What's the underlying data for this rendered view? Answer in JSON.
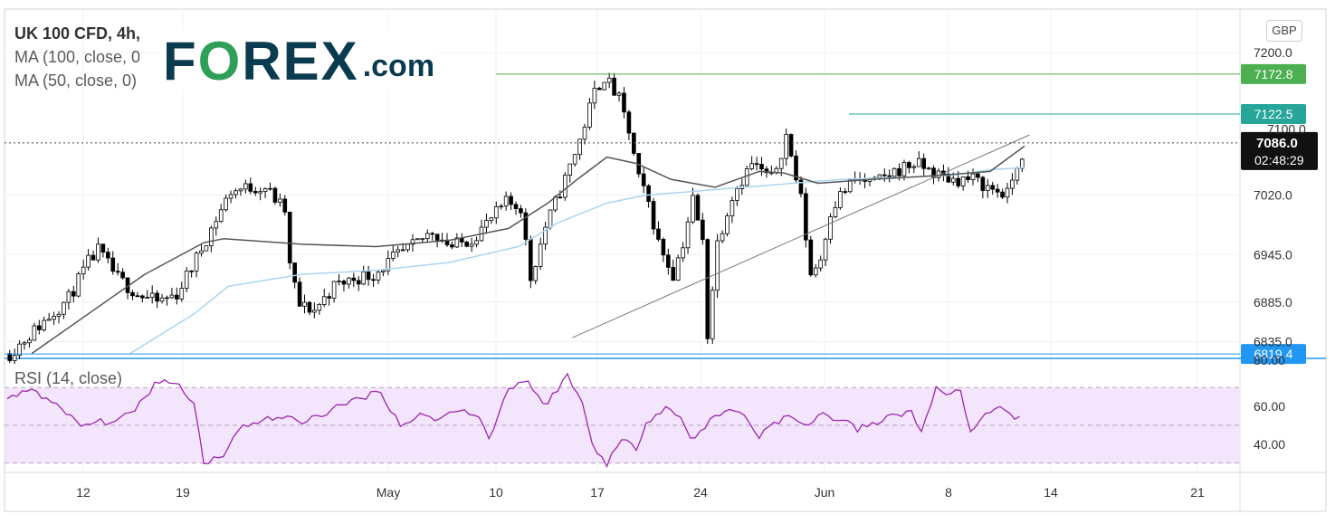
{
  "legend": {
    "symbol": "UK 100 CFD, 4h,",
    "ma100": "MA (100, close, 0",
    "ma50": "MA (50, close, 0)"
  },
  "logo": {
    "brand_pre": "F",
    "brand_o": "O",
    "brand_post": "REX",
    "domain": ".com"
  },
  "currency": "GBP",
  "rsi_label": "RSI (14, close)",
  "colors": {
    "resistance1": "#4caf50",
    "resistance2": "#26a69a",
    "support": "#2196f3",
    "candle": "#000000",
    "ma100": "#555555",
    "ma50": "#a8d6ef",
    "rsi": "#9c27b0",
    "rsi_band": "#f3e5fb"
  },
  "chart_data": {
    "type": "candlestick",
    "title": "UK 100 CFD, 4h",
    "x_tick_labels": [
      "12",
      "19",
      "May",
      "10",
      "17",
      "24",
      "Jun",
      "8",
      "14",
      "21"
    ],
    "price_ticks": [
      7200.0,
      7020.0,
      6945.0,
      6885.0,
      6835.0
    ],
    "price_range": [
      6815,
      7255
    ],
    "horizontal_levels": [
      {
        "value": 7172.8,
        "label": "7172.8",
        "role": "resistance"
      },
      {
        "value": 7122.5,
        "label": "7122.5",
        "role": "resistance"
      },
      {
        "value": 6819.4,
        "label": "6819.4",
        "role": "support"
      }
    ],
    "last_price": {
      "value": 7086.0,
      "label": "7086.0",
      "countdown": "02:48:29"
    },
    "hidden_tick": "7100.0",
    "trendline": {
      "from": {
        "bar": 115,
        "price": 6840
      },
      "to": {
        "bar": 208,
        "price": 7096
      }
    },
    "bar_count": 206,
    "anchors": [
      [
        0,
        6820
      ],
      [
        6,
        6855
      ],
      [
        12,
        6890
      ],
      [
        16,
        6935
      ],
      [
        18,
        6950
      ],
      [
        22,
        6915
      ],
      [
        26,
        6895
      ],
      [
        30,
        6885
      ],
      [
        34,
        6895
      ],
      [
        38,
        6940
      ],
      [
        42,
        6990
      ],
      [
        45,
        7025
      ],
      [
        49,
        7030
      ],
      [
        52,
        7030
      ],
      [
        56,
        7000
      ],
      [
        57,
        6930
      ],
      [
        59,
        6880
      ],
      [
        62,
        6875
      ],
      [
        66,
        6905
      ],
      [
        70,
        6915
      ],
      [
        74,
        6920
      ],
      [
        78,
        6940
      ],
      [
        82,
        6955
      ],
      [
        86,
        6975
      ],
      [
        90,
        6955
      ],
      [
        94,
        6965
      ],
      [
        98,
        6990
      ],
      [
        101,
        7010
      ],
      [
        104,
        7005
      ],
      [
        106,
        6915
      ],
      [
        109,
        6980
      ],
      [
        113,
        7040
      ],
      [
        116,
        7090
      ],
      [
        119,
        7150
      ],
      [
        121,
        7170
      ],
      [
        124,
        7140
      ],
      [
        126,
        7100
      ],
      [
        128,
        7040
      ],
      [
        130,
        7010
      ],
      [
        132,
        6960
      ],
      [
        135,
        6920
      ],
      [
        137,
        6960
      ],
      [
        139,
        7015
      ],
      [
        141,
        6960
      ],
      [
        142,
        6845
      ],
      [
        144,
        6960
      ],
      [
        147,
        7020
      ],
      [
        151,
        7060
      ],
      [
        153,
        7050
      ],
      [
        155,
        7040
      ],
      [
        157,
        7075
      ],
      [
        158,
        7095
      ],
      [
        161,
        7015
      ],
      [
        163,
        6920
      ],
      [
        165,
        6940
      ],
      [
        167,
        7000
      ],
      [
        169,
        7020
      ],
      [
        172,
        7040
      ],
      [
        176,
        7035
      ],
      [
        180,
        7050
      ],
      [
        184,
        7060
      ],
      [
        186,
        7055
      ],
      [
        189,
        7045
      ],
      [
        192,
        7040
      ],
      [
        196,
        7040
      ],
      [
        199,
        7030
      ],
      [
        203,
        7020
      ],
      [
        205,
        7060
      ]
    ],
    "ma100_line": [
      [
        5,
        6820
      ],
      [
        28,
        6920
      ],
      [
        40,
        6960
      ],
      [
        44,
        6965
      ],
      [
        60,
        6958
      ],
      [
        75,
        6955
      ],
      [
        90,
        6963
      ],
      [
        102,
        6978
      ],
      [
        110,
        7010
      ],
      [
        116,
        7040
      ],
      [
        122,
        7068
      ],
      [
        128,
        7060
      ],
      [
        135,
        7040
      ],
      [
        144,
        7030
      ],
      [
        153,
        7050
      ],
      [
        158,
        7048
      ],
      [
        165,
        7035
      ],
      [
        176,
        7040
      ],
      [
        190,
        7045
      ],
      [
        200,
        7050
      ],
      [
        207,
        7082
      ]
    ],
    "ma50_line": [
      [
        25,
        6820
      ],
      [
        38,
        6870
      ],
      [
        45,
        6905
      ],
      [
        60,
        6920
      ],
      [
        75,
        6925
      ],
      [
        90,
        6935
      ],
      [
        104,
        6955
      ],
      [
        112,
        6985
      ],
      [
        122,
        7010
      ],
      [
        130,
        7020
      ],
      [
        140,
        7025
      ],
      [
        150,
        7030
      ],
      [
        160,
        7035
      ],
      [
        170,
        7040
      ],
      [
        180,
        7042
      ],
      [
        192,
        7045
      ],
      [
        200,
        7052
      ],
      [
        207,
        7055
      ]
    ],
    "rsi": {
      "label": "RSI (14, close)",
      "ticks": [
        60.0,
        40.0
      ],
      "top_label": "80.00",
      "range": [
        25,
        85
      ],
      "bands": [
        70,
        30
      ],
      "middle": 50,
      "anchors": [
        [
          0,
          63
        ],
        [
          5,
          70
        ],
        [
          10,
          60
        ],
        [
          15,
          50
        ],
        [
          20,
          52
        ],
        [
          25,
          55
        ],
        [
          30,
          72
        ],
        [
          34,
          74
        ],
        [
          38,
          62
        ],
        [
          40,
          30
        ],
        [
          44,
          35
        ],
        [
          48,
          50
        ],
        [
          52,
          53
        ],
        [
          56,
          54
        ],
        [
          60,
          52
        ],
        [
          64,
          56
        ],
        [
          68,
          60
        ],
        [
          72,
          65
        ],
        [
          76,
          68
        ],
        [
          80,
          50
        ],
        [
          84,
          55
        ],
        [
          88,
          54
        ],
        [
          92,
          58
        ],
        [
          96,
          56
        ],
        [
          98,
          42
        ],
        [
          102,
          70
        ],
        [
          106,
          74
        ],
        [
          109,
          60
        ],
        [
          114,
          76
        ],
        [
          117,
          62
        ],
        [
          119,
          40
        ],
        [
          122,
          30
        ],
        [
          125,
          42
        ],
        [
          128,
          38
        ],
        [
          130,
          52
        ],
        [
          134,
          60
        ],
        [
          137,
          54
        ],
        [
          139,
          42
        ],
        [
          142,
          50
        ],
        [
          146,
          58
        ],
        [
          150,
          56
        ],
        [
          153,
          44
        ],
        [
          156,
          52
        ],
        [
          159,
          54
        ],
        [
          162,
          50
        ],
        [
          166,
          56
        ],
        [
          170,
          52
        ],
        [
          173,
          48
        ],
        [
          176,
          50
        ],
        [
          180,
          55
        ],
        [
          184,
          58
        ],
        [
          186,
          45
        ],
        [
          189,
          70
        ],
        [
          192,
          66
        ],
        [
          194,
          70
        ],
        [
          196,
          45
        ],
        [
          199,
          55
        ],
        [
          202,
          58
        ],
        [
          205,
          55
        ]
      ]
    }
  }
}
